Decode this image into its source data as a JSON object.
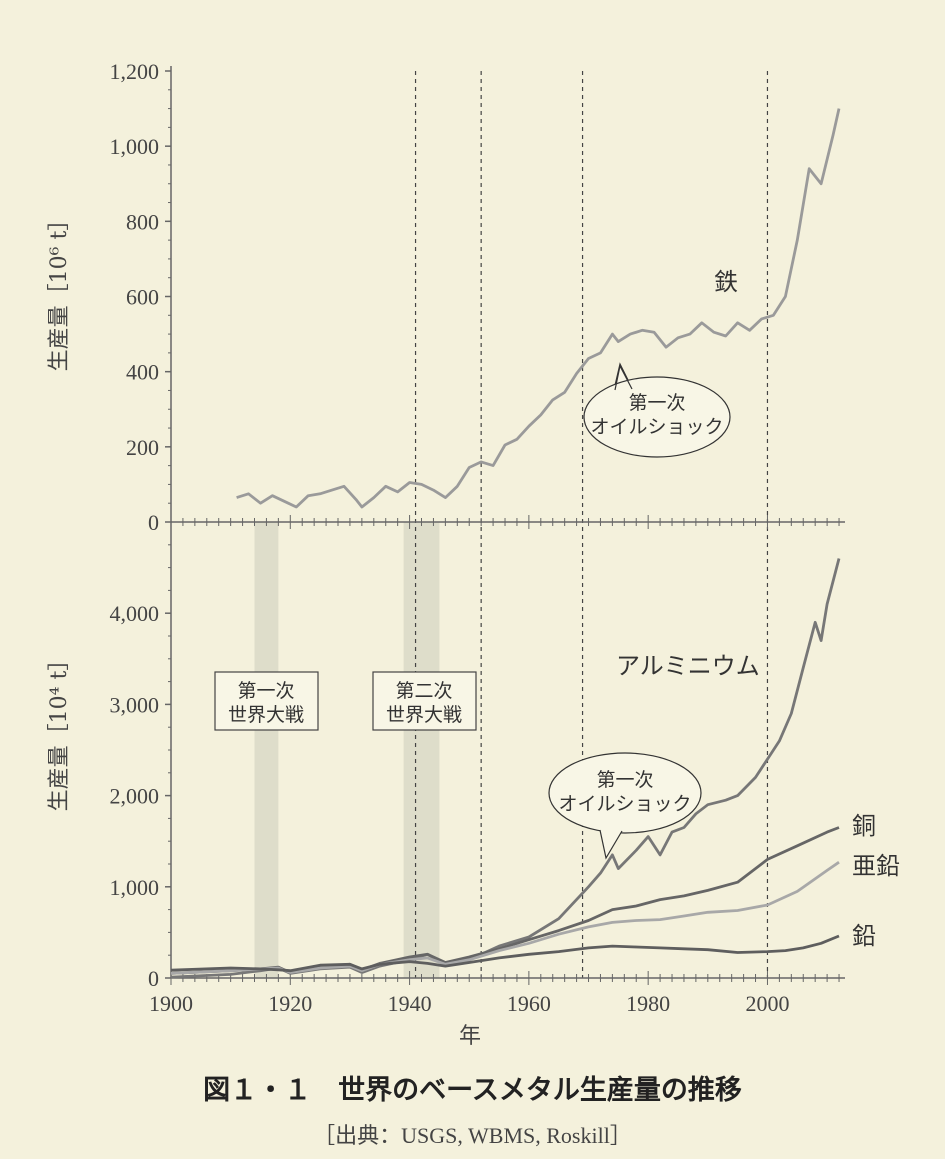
{
  "chart_data": [
    {
      "type": "line",
      "ylabel": "生産量［10⁶ t］",
      "ylim": [
        0,
        1200
      ],
      "yticks": [
        "0",
        "200",
        "400",
        "600",
        "800",
        "1,000",
        "1,200"
      ],
      "xlim": [
        1900,
        2013
      ],
      "series": [
        {
          "name": "鉄",
          "color": "#9a9a9a",
          "x": [
            1911,
            1913,
            1915,
            1917,
            1919,
            1921,
            1923,
            1925,
            1927,
            1929,
            1931,
            1932,
            1934,
            1936,
            1938,
            1940,
            1942,
            1944,
            1946,
            1948,
            1950,
            1952,
            1954,
            1956,
            1958,
            1960,
            1962,
            1964,
            1966,
            1968,
            1970,
            1972,
            1974,
            1975,
            1977,
            1979,
            1981,
            1983,
            1985,
            1987,
            1989,
            1991,
            1993,
            1995,
            1997,
            1999,
            2001,
            2003,
            2005,
            2007,
            2009,
            2011,
            2012
          ],
          "y": [
            65,
            75,
            50,
            70,
            55,
            40,
            70,
            75,
            85,
            95,
            60,
            40,
            65,
            95,
            80,
            105,
            100,
            85,
            65,
            95,
            145,
            160,
            150,
            205,
            220,
            255,
            285,
            325,
            345,
            395,
            435,
            450,
            500,
            480,
            500,
            510,
            505,
            465,
            490,
            500,
            530,
            505,
            495,
            530,
            510,
            540,
            550,
            600,
            750,
            940,
            900,
            1030,
            1100
          ]
        }
      ],
      "annotations": [
        "第一次オイルショック"
      ],
      "vlines": [
        1941,
        1952,
        1969,
        2000
      ]
    },
    {
      "type": "line",
      "xlabel": "年",
      "ylabel": "生産量［10⁴ t］",
      "ylim": [
        0,
        5000
      ],
      "yticks": [
        "0",
        "1,000",
        "2,000",
        "3,000",
        "4,000"
      ],
      "xlim": [
        1900,
        2013
      ],
      "xticks": [
        "1900",
        "1920",
        "1940",
        "1960",
        "1980",
        "2000"
      ],
      "series": [
        {
          "name": "アルミニウム",
          "color": "#777777",
          "x": [
            1900,
            1910,
            1915,
            1918,
            1920,
            1925,
            1930,
            1932,
            1935,
            1940,
            1943,
            1946,
            1950,
            1955,
            1960,
            1965,
            1970,
            1972,
            1974,
            1975,
            1978,
            1980,
            1982,
            1984,
            1986,
            1988,
            1990,
            1993,
            1995,
            1998,
            2000,
            2002,
            2004,
            2006,
            2008,
            2009,
            2010,
            2012
          ],
          "y": [
            10,
            40,
            80,
            110,
            50,
            100,
            120,
            60,
            130,
            200,
            260,
            150,
            200,
            350,
            450,
            650,
            1000,
            1150,
            1350,
            1200,
            1400,
            1550,
            1350,
            1600,
            1650,
            1800,
            1900,
            1950,
            2000,
            2200,
            2400,
            2600,
            2900,
            3400,
            3900,
            3700,
            4100,
            4600
          ]
        },
        {
          "name": "銅",
          "color": "#666666",
          "x": [
            1900,
            1910,
            1915,
            1918,
            1920,
            1925,
            1930,
            1932,
            1935,
            1940,
            1943,
            1946,
            1950,
            1955,
            1960,
            1965,
            1970,
            1974,
            1978,
            1982,
            1986,
            1990,
            1995,
            2000,
            2005,
            2010,
            2012
          ],
          "y": [
            50,
            80,
            100,
            120,
            60,
            120,
            150,
            90,
            160,
            230,
            260,
            170,
            230,
            320,
            420,
            520,
            630,
            750,
            790,
            860,
            900,
            960,
            1050,
            1300,
            1450,
            1600,
            1650
          ]
        },
        {
          "name": "亜鉛",
          "color": "#a8a8a8",
          "x": [
            1900,
            1910,
            1915,
            1918,
            1920,
            1925,
            1930,
            1932,
            1935,
            1940,
            1943,
            1946,
            1950,
            1955,
            1960,
            1965,
            1970,
            1974,
            1978,
            1982,
            1986,
            1990,
            1995,
            2000,
            2005,
            2010,
            2012
          ],
          "y": [
            50,
            80,
            100,
            110,
            60,
            110,
            130,
            80,
            150,
            200,
            220,
            150,
            200,
            300,
            380,
            480,
            560,
            610,
            630,
            640,
            680,
            720,
            740,
            800,
            950,
            1180,
            1270
          ]
        },
        {
          "name": "鉛",
          "color": "#5e5e5e",
          "x": [
            1900,
            1910,
            1915,
            1918,
            1920,
            1925,
            1930,
            1932,
            1935,
            1940,
            1943,
            1946,
            1950,
            1955,
            1960,
            1965,
            1970,
            1974,
            1978,
            1982,
            1986,
            1990,
            1995,
            2000,
            2003,
            2006,
            2009,
            2012
          ],
          "y": [
            85,
            110,
            100,
            90,
            80,
            140,
            150,
            100,
            150,
            180,
            160,
            130,
            170,
            220,
            260,
            290,
            330,
            350,
            340,
            330,
            320,
            310,
            280,
            290,
            300,
            330,
            380,
            460
          ]
        }
      ],
      "annotations": [
        "第一次世界大戦",
        "第二次世界大戦",
        "アルミニウム",
        "第一次オイルショック"
      ],
      "shaded_periods": [
        [
          1914,
          1918
        ],
        [
          1939,
          1945
        ]
      ],
      "vlines": [
        1941,
        1952,
        1969,
        2000
      ]
    }
  ],
  "labels": {
    "ww1_line1": "第一次",
    "ww1_line2": "世界大戦",
    "ww2_line1": "第二次",
    "ww2_line2": "世界大戦",
    "oil_line1": "第一次",
    "oil_line2": "オイルショック",
    "aluminum": "アルミニウム",
    "iron": "鉄",
    "copper": "銅",
    "zinc": "亜鉛",
    "lead": "鉛"
  },
  "caption": "図１・１　世界のベースメタル生産量の推移",
  "source": "［出典：USGS, WBMS, Roskill］"
}
